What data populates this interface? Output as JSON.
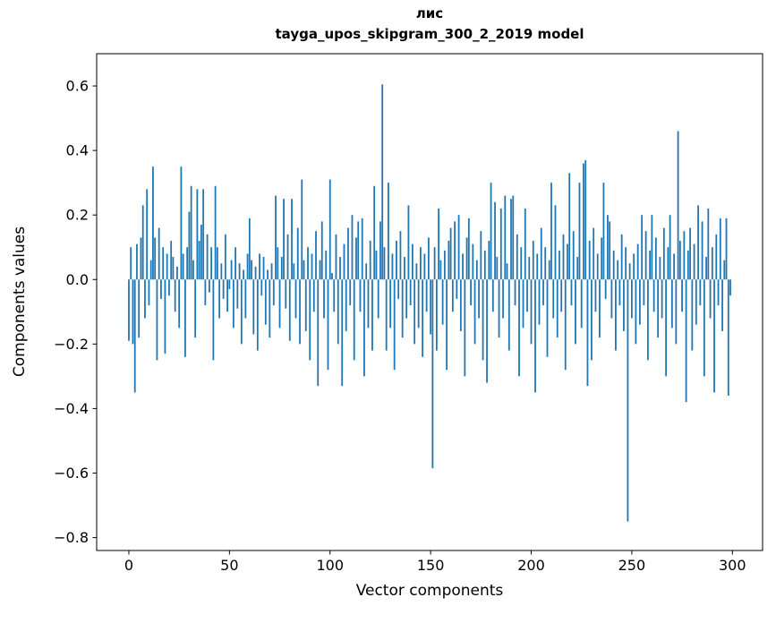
{
  "figure": {
    "title_line1": "лис",
    "title_line2": "tayga_upos_skipgram_300_2_2019 model",
    "xlabel": "Vector components",
    "ylabel": "Components values"
  },
  "chart_data": {
    "type": "bar",
    "title": "лис — tayga_upos_skipgram_300_2_2019 model",
    "xlabel": "Vector components",
    "ylabel": "Components values",
    "bar_color": "#1f77b4",
    "axes_color": "#000000",
    "grid": false,
    "legend": null,
    "xlim": [
      -16,
      315
    ],
    "ylim": [
      -0.84,
      0.7
    ],
    "xticks": [
      0,
      50,
      100,
      150,
      200,
      250,
      300
    ],
    "yticks": [
      0.6,
      0.4,
      0.2,
      0.0,
      -0.2,
      -0.4,
      -0.6,
      -0.8
    ],
    "x_start": 0,
    "values": [
      -0.19,
      0.1,
      -0.2,
      -0.35,
      0.11,
      -0.18,
      0.13,
      0.23,
      -0.12,
      0.28,
      -0.08,
      0.06,
      0.35,
      0.13,
      -0.25,
      0.16,
      -0.06,
      0.1,
      -0.23,
      0.08,
      -0.05,
      0.12,
      0.07,
      -0.1,
      0.04,
      -0.15,
      0.35,
      0.08,
      -0.24,
      0.1,
      0.21,
      0.29,
      0.06,
      -0.18,
      0.28,
      0.12,
      0.17,
      0.28,
      -0.08,
      0.14,
      -0.04,
      0.1,
      -0.25,
      0.29,
      0.1,
      -0.12,
      0.05,
      -0.06,
      0.14,
      -0.1,
      -0.03,
      0.06,
      -0.15,
      0.1,
      -0.09,
      0.05,
      -0.2,
      0.03,
      -0.12,
      0.08,
      0.19,
      0.06,
      -0.17,
      0.04,
      -0.22,
      0.08,
      -0.05,
      0.07,
      -0.14,
      0.03,
      -0.18,
      0.05,
      -0.08,
      0.26,
      0.1,
      -0.15,
      0.07,
      0.25,
      -0.09,
      0.14,
      -0.19,
      0.25,
      0.05,
      -0.12,
      0.16,
      -0.2,
      0.31,
      0.06,
      -0.16,
      0.1,
      -0.25,
      0.08,
      -0.1,
      0.15,
      -0.33,
      0.06,
      0.18,
      -0.12,
      0.09,
      -0.28,
      0.31,
      0.02,
      -0.1,
      0.14,
      -0.2,
      0.07,
      -0.33,
      0.11,
      -0.16,
      0.16,
      -0.08,
      0.2,
      -0.25,
      0.13,
      0.18,
      -0.1,
      0.19,
      -0.3,
      0.05,
      -0.15,
      0.12,
      -0.22,
      0.29,
      0.09,
      -0.12,
      0.18,
      0.605,
      0.1,
      -0.22,
      0.3,
      -0.15,
      0.08,
      -0.28,
      0.12,
      -0.06,
      0.15,
      -0.18,
      0.07,
      -0.12,
      0.23,
      -0.08,
      0.11,
      -0.2,
      0.05,
      -0.15,
      0.1,
      -0.24,
      0.08,
      -0.1,
      0.13,
      -0.17,
      -0.585,
      0.1,
      -0.22,
      0.22,
      0.06,
      -0.14,
      0.09,
      -0.28,
      0.12,
      0.16,
      -0.1,
      0.18,
      -0.06,
      0.2,
      -0.16,
      0.08,
      -0.3,
      0.13,
      0.19,
      -0.08,
      0.11,
      -0.2,
      0.06,
      -0.12,
      0.15,
      -0.25,
      0.09,
      -0.32,
      0.12,
      0.3,
      -0.1,
      0.24,
      0.07,
      -0.18,
      0.22,
      -0.12,
      0.26,
      0.05,
      -0.22,
      0.25,
      0.26,
      -0.08,
      0.14,
      -0.3,
      0.1,
      -0.15,
      0.22,
      -0.1,
      0.07,
      -0.2,
      0.12,
      -0.35,
      0.08,
      -0.14,
      0.16,
      -0.08,
      0.1,
      -0.24,
      0.06,
      0.3,
      -0.12,
      0.23,
      -0.18,
      0.09,
      -0.1,
      0.14,
      -0.28,
      0.11,
      0.33,
      -0.08,
      0.15,
      -0.2,
      0.07,
      0.3,
      -0.15,
      0.36,
      0.37,
      -0.33,
      0.12,
      -0.25,
      0.16,
      -0.1,
      0.08,
      -0.18,
      0.13,
      0.3,
      -0.06,
      0.2,
      0.18,
      -0.12,
      0.09,
      -0.22,
      0.06,
      -0.08,
      0.14,
      -0.16,
      0.1,
      -0.75,
      0.05,
      -0.12,
      0.08,
      -0.2,
      0.11,
      -0.14,
      0.2,
      -0.08,
      0.15,
      -0.25,
      0.09,
      0.2,
      -0.1,
      0.13,
      -0.18,
      0.07,
      -0.12,
      0.16,
      -0.3,
      0.1,
      0.2,
      -0.15,
      0.08,
      -0.2,
      0.46,
      0.12,
      -0.1,
      0.15,
      -0.38,
      0.09,
      0.16,
      -0.22,
      0.11,
      -0.14,
      0.23,
      -0.08,
      0.18,
      -0.3,
      0.07,
      0.22,
      -0.12,
      0.1,
      -0.35,
      0.14,
      -0.08,
      0.19,
      -0.16,
      0.06,
      0.19,
      -0.36,
      -0.05
    ]
  }
}
